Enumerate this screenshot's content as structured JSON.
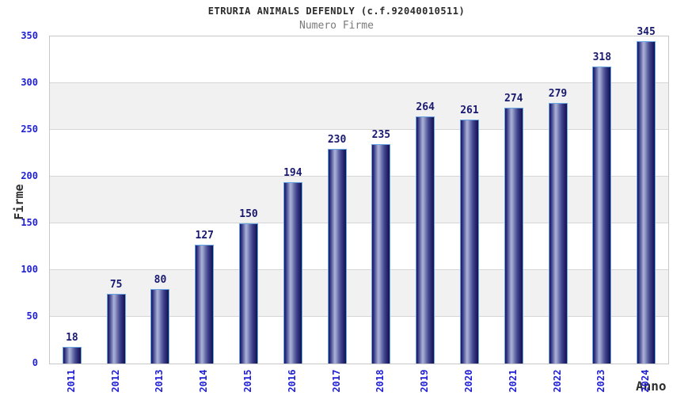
{
  "chart_data": {
    "type": "bar",
    "title": "ETRURIA ANIMALS DEFENDLY (c.f.92040010511)",
    "subtitle": "Numero Firme",
    "xlabel": "Anno",
    "ylabel": "Firme",
    "categories": [
      "2011",
      "2012",
      "2013",
      "2014",
      "2015",
      "2016",
      "2017",
      "2018",
      "2019",
      "2020",
      "2021",
      "2022",
      "2023",
      "2024"
    ],
    "values": [
      18,
      75,
      80,
      127,
      150,
      194,
      230,
      235,
      264,
      261,
      274,
      279,
      318,
      345
    ],
    "ylim": [
      0,
      350
    ],
    "ytick_step": 50,
    "yticks": [
      0,
      50,
      100,
      150,
      200,
      250,
      300,
      350
    ],
    "legend_position": "none",
    "grid": "alternating horizontal bands with gray gridlines every 50",
    "colors": {
      "bar_dark": "#171760",
      "bar_highlight": "#abb2d6",
      "bar_border": "#66a4e4",
      "axis_tick_label": "#1f1fd6",
      "value_label": "#191970",
      "title": "#2a2a2a",
      "subtitle": "#7a7a7a",
      "band_gray": "#f1f1f1",
      "grid_line": "#d6d6d6",
      "plot_border": "#c8c8c8"
    }
  }
}
